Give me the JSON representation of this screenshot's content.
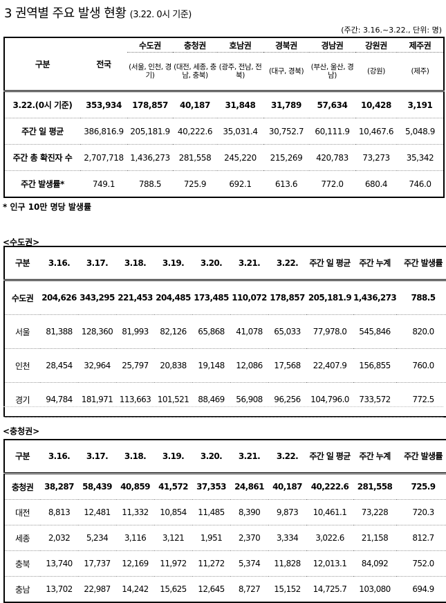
{
  "page": {
    "title_main": "3 권역별 주요 발생 현황",
    "title_sub": "(3.22. 0시 기준)",
    "unit_note": "(주간: 3.16.~3.22., 단위: 명)",
    "footnote": "* 인구 10만 명당 발생률"
  },
  "summary": {
    "header_label": "구분",
    "header_total": "전국",
    "regions": [
      {
        "name": "수도권",
        "sub": "(서울, 인천, 경기)"
      },
      {
        "name": "충청권",
        "sub": "(대전, 세종, 충남, 충북)"
      },
      {
        "name": "호남권",
        "sub": "(광주, 전남, 전북)"
      },
      {
        "name": "경북권",
        "sub": "(대구, 경북)"
      },
      {
        "name": "경남권",
        "sub": "(부산, 울산, 경남)"
      },
      {
        "name": "강원권",
        "sub": "(강원)"
      },
      {
        "name": "제주권",
        "sub": "(제주)"
      }
    ],
    "rows": [
      {
        "label": "3.22.(0시 기준)",
        "values": [
          "353,934",
          "178,857",
          "40,187",
          "31,848",
          "31,789",
          "57,634",
          "10,428",
          "3,191"
        ]
      },
      {
        "label": "주간 일 평균",
        "values": [
          "386,816.9",
          "205,181.9",
          "40,222.6",
          "35,031.4",
          "30,752.7",
          "60,111.9",
          "10,467.6",
          "5,048.9"
        ]
      },
      {
        "label": "주간 총 확진자 수",
        "values": [
          "2,707,718",
          "1,436,273",
          "281,558",
          "245,220",
          "215,269",
          "420,783",
          "73,273",
          "35,342"
        ]
      },
      {
        "label": "주간 발생률*",
        "values": [
          "749.1",
          "788.5",
          "725.9",
          "692.1",
          "613.6",
          "772.0",
          "680.4",
          "746.0"
        ]
      }
    ]
  },
  "capital": {
    "section_label": "<수도권>",
    "headers": [
      "구분",
      "3.16.",
      "3.17.",
      "3.18.",
      "3.19.",
      "3.20.",
      "3.21.",
      "3.22.",
      "주간 일 평균",
      "주간 누계",
      "주간 발생률"
    ],
    "rows": [
      {
        "label": "수도권",
        "values": [
          "204,626",
          "343,295",
          "221,453",
          "204,485",
          "173,485",
          "110,072",
          "178,857",
          "205,181.9",
          "1,436,273",
          "788.5"
        ]
      },
      {
        "label": "서울",
        "values": [
          "81,388",
          "128,360",
          "81,993",
          "82,126",
          "65,868",
          "41,078",
          "65,033",
          "77,978.0",
          "545,846",
          "820.0"
        ]
      },
      {
        "label": "인천",
        "values": [
          "28,454",
          "32,964",
          "25,797",
          "20,838",
          "19,148",
          "12,086",
          "17,568",
          "22,407.9",
          "156,855",
          "760.0"
        ]
      },
      {
        "label": "경기",
        "values": [
          "94,784",
          "181,971",
          "113,663",
          "101,521",
          "88,469",
          "56,908",
          "96,256",
          "104,796.0",
          "733,572",
          "772.5"
        ]
      }
    ]
  },
  "chungcheong": {
    "section_label": "<충청권>",
    "headers": [
      "구분",
      "3.16.",
      "3.17.",
      "3.18.",
      "3.19.",
      "3.20.",
      "3.21.",
      "3.22.",
      "주간 일 평균",
      "주간 누계",
      "주간 발생률"
    ],
    "rows": [
      {
        "label": "충청권",
        "values": [
          "38,287",
          "58,439",
          "40,859",
          "41,572",
          "37,353",
          "24,861",
          "40,187",
          "40,222.6",
          "281,558",
          "725.9"
        ]
      },
      {
        "label": "대전",
        "values": [
          "8,813",
          "12,481",
          "11,332",
          "10,854",
          "11,485",
          "8,390",
          "9,873",
          "10,461.1",
          "73,228",
          "720.3"
        ]
      },
      {
        "label": "세종",
        "values": [
          "2,032",
          "5,234",
          "3,116",
          "3,121",
          "1,951",
          "2,370",
          "3,334",
          "3,022.6",
          "21,158",
          "812.7"
        ]
      },
      {
        "label": "충북",
        "values": [
          "13,740",
          "17,737",
          "12,169",
          "11,972",
          "11,272",
          "5,374",
          "11,828",
          "12,013.1",
          "84,092",
          "752.0"
        ]
      },
      {
        "label": "충남",
        "values": [
          "13,702",
          "22,987",
          "14,242",
          "15,625",
          "12,645",
          "8,727",
          "15,152",
          "14,725.7",
          "103,080",
          "694.9"
        ]
      }
    ]
  }
}
